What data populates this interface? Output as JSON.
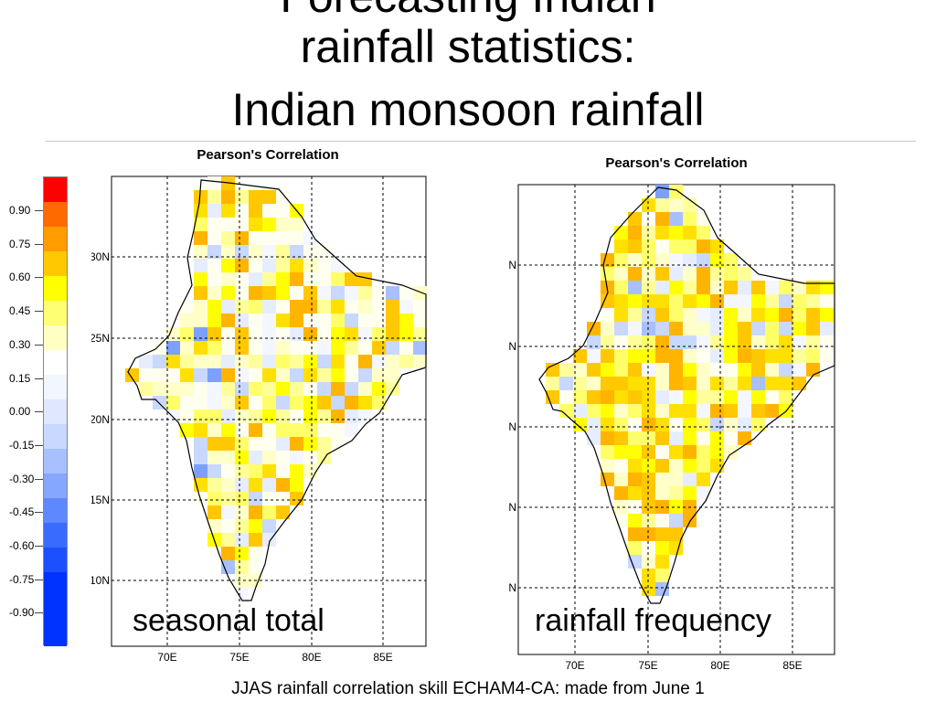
{
  "title": {
    "line1": "Forecasting Indian",
    "line2": "rainfall statistics:",
    "line3": "Indian monsoon rainfall"
  },
  "legend": {
    "colors": [
      "#ff0000",
      "#ff6a00",
      "#ff9c00",
      "#ffc800",
      "#ffff00",
      "#ffff73",
      "#ffffc4",
      "#ffffff",
      "#f2f6ff",
      "#dfe8ff",
      "#c8d8ff",
      "#a8c0ff",
      "#86a6ff",
      "#5e88ff",
      "#3a6bff",
      "#1c50ff",
      "#0033ff",
      "#0033ff",
      "#0033ff"
    ],
    "labels": [
      "0.90",
      "0.75",
      "0.60",
      "0.45",
      "0.30",
      "0.15",
      "0.00",
      "-0.15",
      "-0.30",
      "-0.45",
      "-0.60",
      "-0.75",
      "-0.90"
    ]
  },
  "maps": [
    {
      "title": "Pearson's Correlation",
      "overlay_label": "seasonal total",
      "lat_labels": [
        "30N",
        "25N",
        "20N",
        "15N",
        "10N"
      ],
      "lon_labels": [
        "70E",
        "75E",
        "80E",
        "85E"
      ]
    },
    {
      "title": "Pearson's Correlation",
      "overlay_label": "rainfall frequency",
      "lat_labels": [
        "N",
        "N",
        "N",
        "N",
        "N"
      ],
      "lon_labels": [
        "70E",
        "75E",
        "80E",
        "85E"
      ]
    }
  ],
  "caption": "JJAS rainfall correlation skill ECHAM4-CA:  made from June 1"
}
